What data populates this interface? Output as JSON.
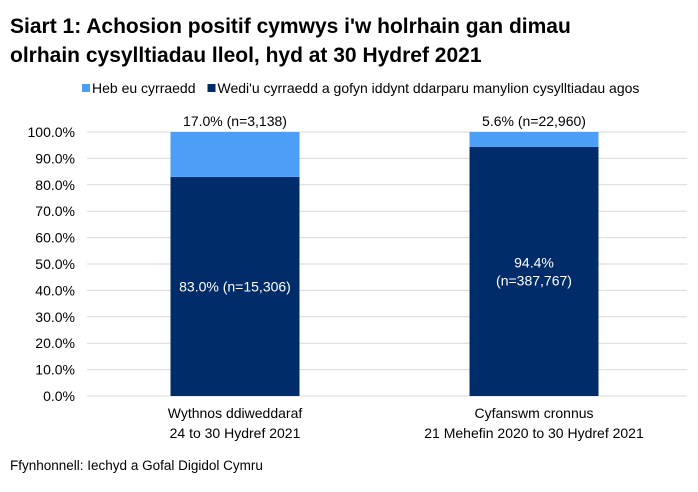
{
  "chart_data": {
    "type": "stacked-bar-100",
    "title": "Siart 1: Achosion positif cymwys i'w holrhain gan dimau olrhain cysylltiadau lleol, hyd at 30 Hydref 2021",
    "title_lines": [
      "Siart 1: Achosion positif cymwys i'w holrhain gan dimau",
      "olrhain cysylltiadau lleol, hyd at 30 Hydref 2021"
    ],
    "categories": [
      [
        "Wythnos ddiweddaraf",
        "24 to 30 Hydref 2021"
      ],
      [
        "Cyfanswm cronnus",
        "21 Mehefin 2020 to 30 Hydref 2021"
      ]
    ],
    "series": [
      {
        "name": "Wedi'u cyrraedd a gofyn iddynt ddarparu manylion cysylltiadau agos",
        "color": "#002D6A",
        "values": [
          83.0,
          94.4
        ],
        "labels": [
          [
            "83.0% (n=15,306)"
          ],
          [
            "94.4%",
            "(n=387,767)"
          ]
        ]
      },
      {
        "name": "Heb eu cyrraedd",
        "color": "#4C9EF7",
        "values": [
          17.0,
          5.6
        ],
        "labels": [
          [
            "17.0% (n=3,138)"
          ],
          [
            "5.6% (n=22,960)"
          ]
        ]
      }
    ],
    "legend_order": [
      1,
      0
    ],
    "legend_position": "top",
    "ylim": [
      0,
      100
    ],
    "yticks": [
      "0.0%",
      "10.0%",
      "20.0%",
      "30.0%",
      "40.0%",
      "50.0%",
      "60.0%",
      "70.0%",
      "80.0%",
      "90.0%",
      "100.0%"
    ],
    "grid": true,
    "source": "Ffynhonnell: Iechyd a Gofal Digidol Cymru"
  }
}
